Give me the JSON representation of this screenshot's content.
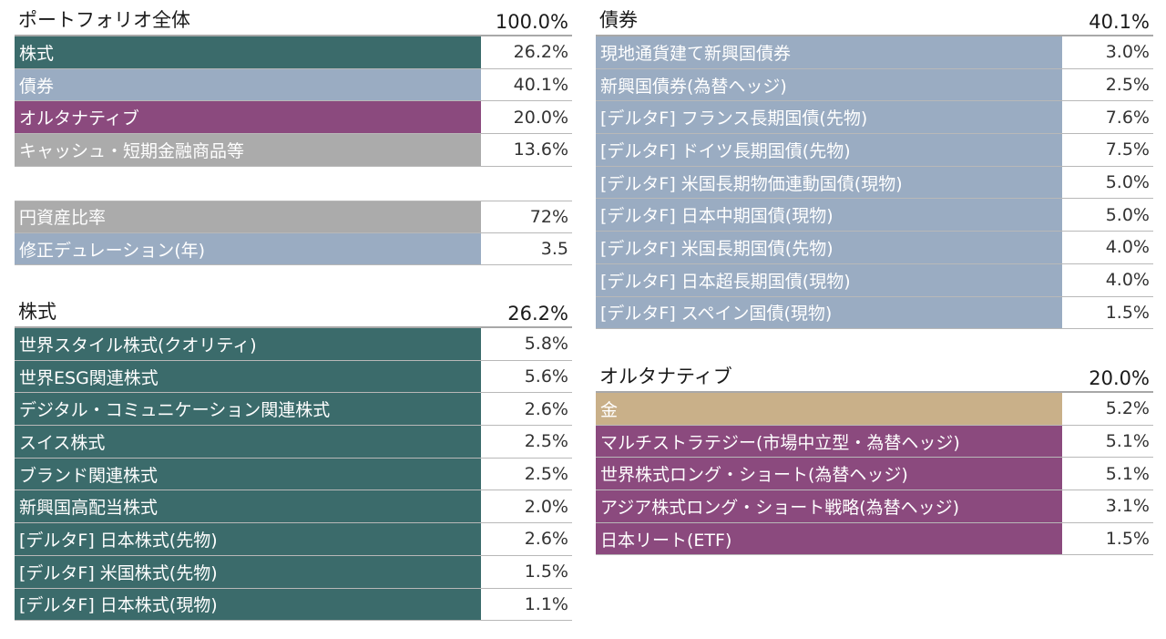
{
  "colors": {
    "equity": "#3b6b6b",
    "bond": "#9aacc2",
    "alternative": "#8b4a7e",
    "cash": "#ababab",
    "gold": "#c9b089"
  },
  "portfolio": {
    "title": "ポートフォリオ全体",
    "total": "100.0%",
    "rows": [
      {
        "label": "株式",
        "value": "26.2%",
        "color": "#3b6b6b"
      },
      {
        "label": "債券",
        "value": "40.1%",
        "color": "#9aacc2"
      },
      {
        "label": "オルタナティブ",
        "value": "20.0%",
        "color": "#8b4a7e"
      },
      {
        "label": "キャッシュ・短期金融商品等",
        "value": "13.6%",
        "color": "#ababab"
      }
    ]
  },
  "ratios": {
    "rows": [
      {
        "label": "円資産比率",
        "value": "72%",
        "color": "#ababab"
      },
      {
        "label": "修正デュレーション(年)",
        "value": "3.5",
        "color": "#9aacc2"
      }
    ]
  },
  "equity": {
    "title": "株式",
    "total": "26.2%",
    "rows": [
      {
        "label": "世界スタイル株式(クオリティ)",
        "value": "5.8%",
        "color": "#3b6b6b"
      },
      {
        "label": "世界ESG関連株式",
        "value": "5.6%",
        "color": "#3b6b6b"
      },
      {
        "label": "デジタル・コミュニケーション関連株式",
        "value": "2.6%",
        "color": "#3b6b6b"
      },
      {
        "label": "スイス株式",
        "value": "2.5%",
        "color": "#3b6b6b"
      },
      {
        "label": "ブランド関連株式",
        "value": "2.5%",
        "color": "#3b6b6b"
      },
      {
        "label": "新興国高配当株式",
        "value": "2.0%",
        "color": "#3b6b6b"
      },
      {
        "label": "[デルタF] 日本株式(先物)",
        "value": "2.6%",
        "color": "#3b6b6b"
      },
      {
        "label": "[デルタF] 米国株式(先物)",
        "value": "1.5%",
        "color": "#3b6b6b"
      },
      {
        "label": "[デルタF] 日本株式(現物)",
        "value": "1.1%",
        "color": "#3b6b6b"
      }
    ]
  },
  "bonds": {
    "title": "債券",
    "total": "40.1%",
    "rows": [
      {
        "label": "現地通貨建て新興国債券",
        "value": "3.0%",
        "color": "#9aacc2"
      },
      {
        "label": "新興国債券(為替ヘッジ)",
        "value": "2.5%",
        "color": "#9aacc2"
      },
      {
        "label": "[デルタF] フランス長期国債(先物)",
        "value": "7.6%",
        "color": "#9aacc2"
      },
      {
        "label": "[デルタF] ドイツ長期国債(先物)",
        "value": "7.5%",
        "color": "#9aacc2"
      },
      {
        "label": "[デルタF] 米国長期物価連動国債(現物)",
        "value": "5.0%",
        "color": "#9aacc2"
      },
      {
        "label": "[デルタF] 日本中期国債(現物)",
        "value": "5.0%",
        "color": "#9aacc2"
      },
      {
        "label": "[デルタF] 米国長期国債(先物)",
        "value": "4.0%",
        "color": "#9aacc2"
      },
      {
        "label": "[デルタF] 日本超長期国債(現物)",
        "value": "4.0%",
        "color": "#9aacc2"
      },
      {
        "label": "[デルタF] スペイン国債(現物)",
        "value": "1.5%",
        "color": "#9aacc2"
      }
    ]
  },
  "alternative": {
    "title": "オルタナティブ",
    "total": "20.0%",
    "rows": [
      {
        "label": "金",
        "value": "5.2%",
        "color": "#c9b089"
      },
      {
        "label": "マルチストラテジー(市場中立型・為替ヘッジ)",
        "value": "5.1%",
        "color": "#8b4a7e"
      },
      {
        "label": "世界株式ロング・ショート(為替ヘッジ)",
        "value": "5.1%",
        "color": "#8b4a7e"
      },
      {
        "label": "アジア株式ロング・ショート戦略(為替ヘッジ)",
        "value": "3.1%",
        "color": "#8b4a7e"
      },
      {
        "label": "日本リート(ETF)",
        "value": "1.5%",
        "color": "#8b4a7e"
      }
    ]
  }
}
